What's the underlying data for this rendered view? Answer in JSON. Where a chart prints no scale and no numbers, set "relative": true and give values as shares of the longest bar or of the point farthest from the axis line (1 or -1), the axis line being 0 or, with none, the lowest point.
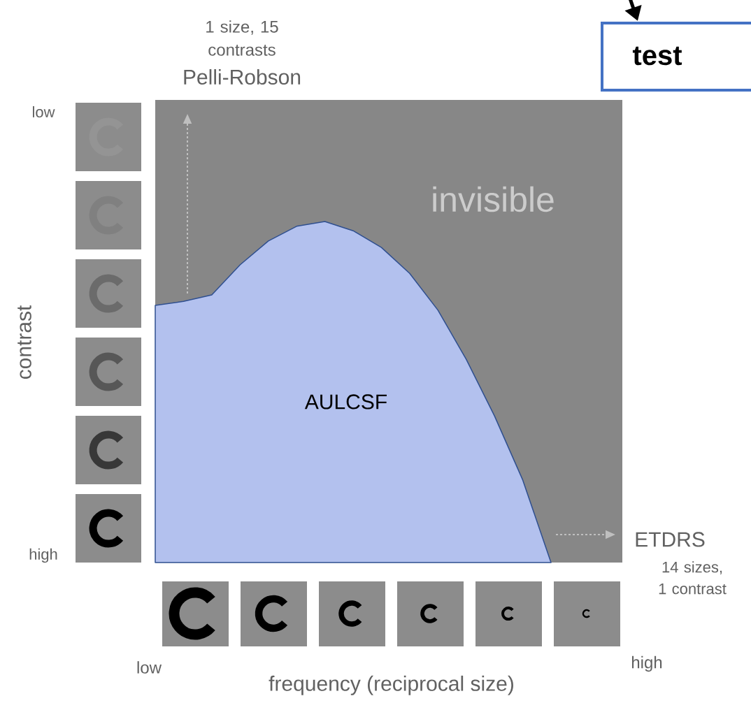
{
  "chart_data": {
    "type": "area",
    "relative": true,
    "title": "Pelli-Robson",
    "subtitle": "1 size, 15 contrasts",
    "categories": [
      null,
      null,
      null,
      null,
      null,
      null,
      null,
      null,
      null,
      null,
      null,
      null,
      null,
      null,
      null
    ],
    "series": [
      {
        "color": "#b3c1ee",
        "values": [
          0.754,
          0.766,
          0.785,
          0.873,
          0.943,
          0.986,
          1.0,
          0.973,
          0.924,
          0.848,
          0.74,
          0.596,
          0.43,
          0.242,
          0
        ]
      }
    ],
    "annotations": [
      "AULCSF",
      "invisible",
      "low",
      "high",
      "low",
      "high",
      "ETDRS",
      "frequency (reciprocal size)",
      "contrast",
      "14 sizes, 1 contrast",
      "test"
    ]
  }
}
